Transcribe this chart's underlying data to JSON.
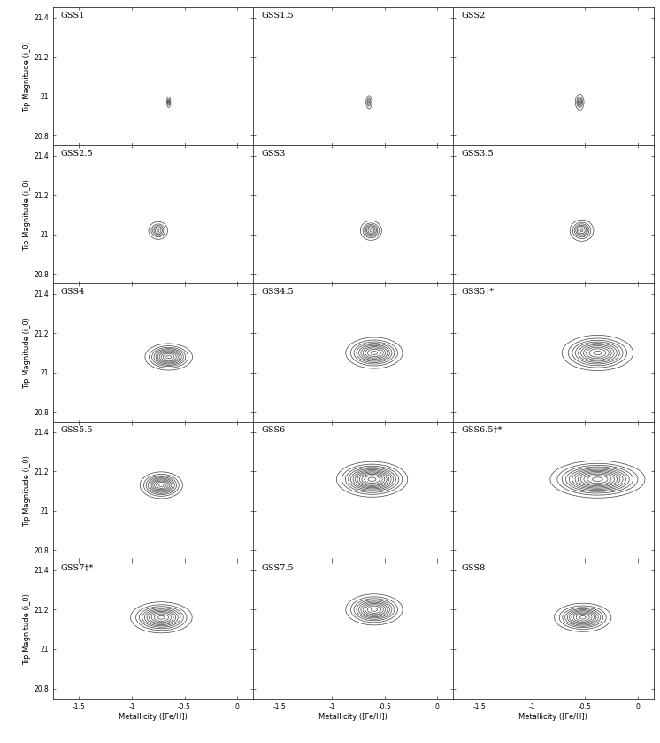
{
  "fields": [
    "GSS1",
    "GSS1.5",
    "GSS2",
    "GSS2.5",
    "GSS3",
    "GSS3.5",
    "GSS4",
    "GSS4.5",
    "GSS5†*",
    "GSS5.5",
    "GSS6",
    "GSS6.5†*",
    "GSS7†*",
    "GSS7.5",
    "GSS8"
  ],
  "xlim": [
    -1.75,
    0.15
  ],
  "ylim": [
    20.75,
    21.45
  ],
  "xticks": [
    -1.5,
    -1.0,
    -0.5,
    0.0
  ],
  "yticks": [
    20.8,
    21.0,
    21.2,
    21.4
  ],
  "xlabel": "Metallicity ([Fe/H])",
  "ylabel": "Tip Magnitude (i_0)",
  "nrows": 5,
  "ncols": 3,
  "centers_x": [
    -0.65,
    -0.65,
    -0.55,
    -0.75,
    -0.63,
    -0.53,
    -0.65,
    -0.6,
    -0.38,
    -0.72,
    -0.62,
    -0.38,
    -0.72,
    -0.6,
    -0.52
  ],
  "centers_y": [
    20.97,
    20.97,
    20.97,
    21.02,
    21.02,
    21.02,
    21.08,
    21.1,
    21.1,
    21.13,
    21.16,
    21.16,
    21.16,
    21.2,
    21.16
  ],
  "sigmas_x": [
    0.008,
    0.012,
    0.018,
    0.04,
    0.045,
    0.05,
    0.1,
    0.12,
    0.15,
    0.09,
    0.15,
    0.2,
    0.13,
    0.12,
    0.12
  ],
  "sigmas_y": [
    0.012,
    0.015,
    0.018,
    0.02,
    0.022,
    0.024,
    0.03,
    0.035,
    0.04,
    0.03,
    0.04,
    0.042,
    0.035,
    0.035,
    0.032
  ],
  "n_contours": [
    4,
    4,
    5,
    6,
    7,
    7,
    10,
    10,
    10,
    10,
    12,
    12,
    10,
    10,
    10
  ],
  "linecolor": "#404040",
  "linewidth": 0.5,
  "figsize": [
    7.46,
    8.39
  ],
  "dpi": 100
}
